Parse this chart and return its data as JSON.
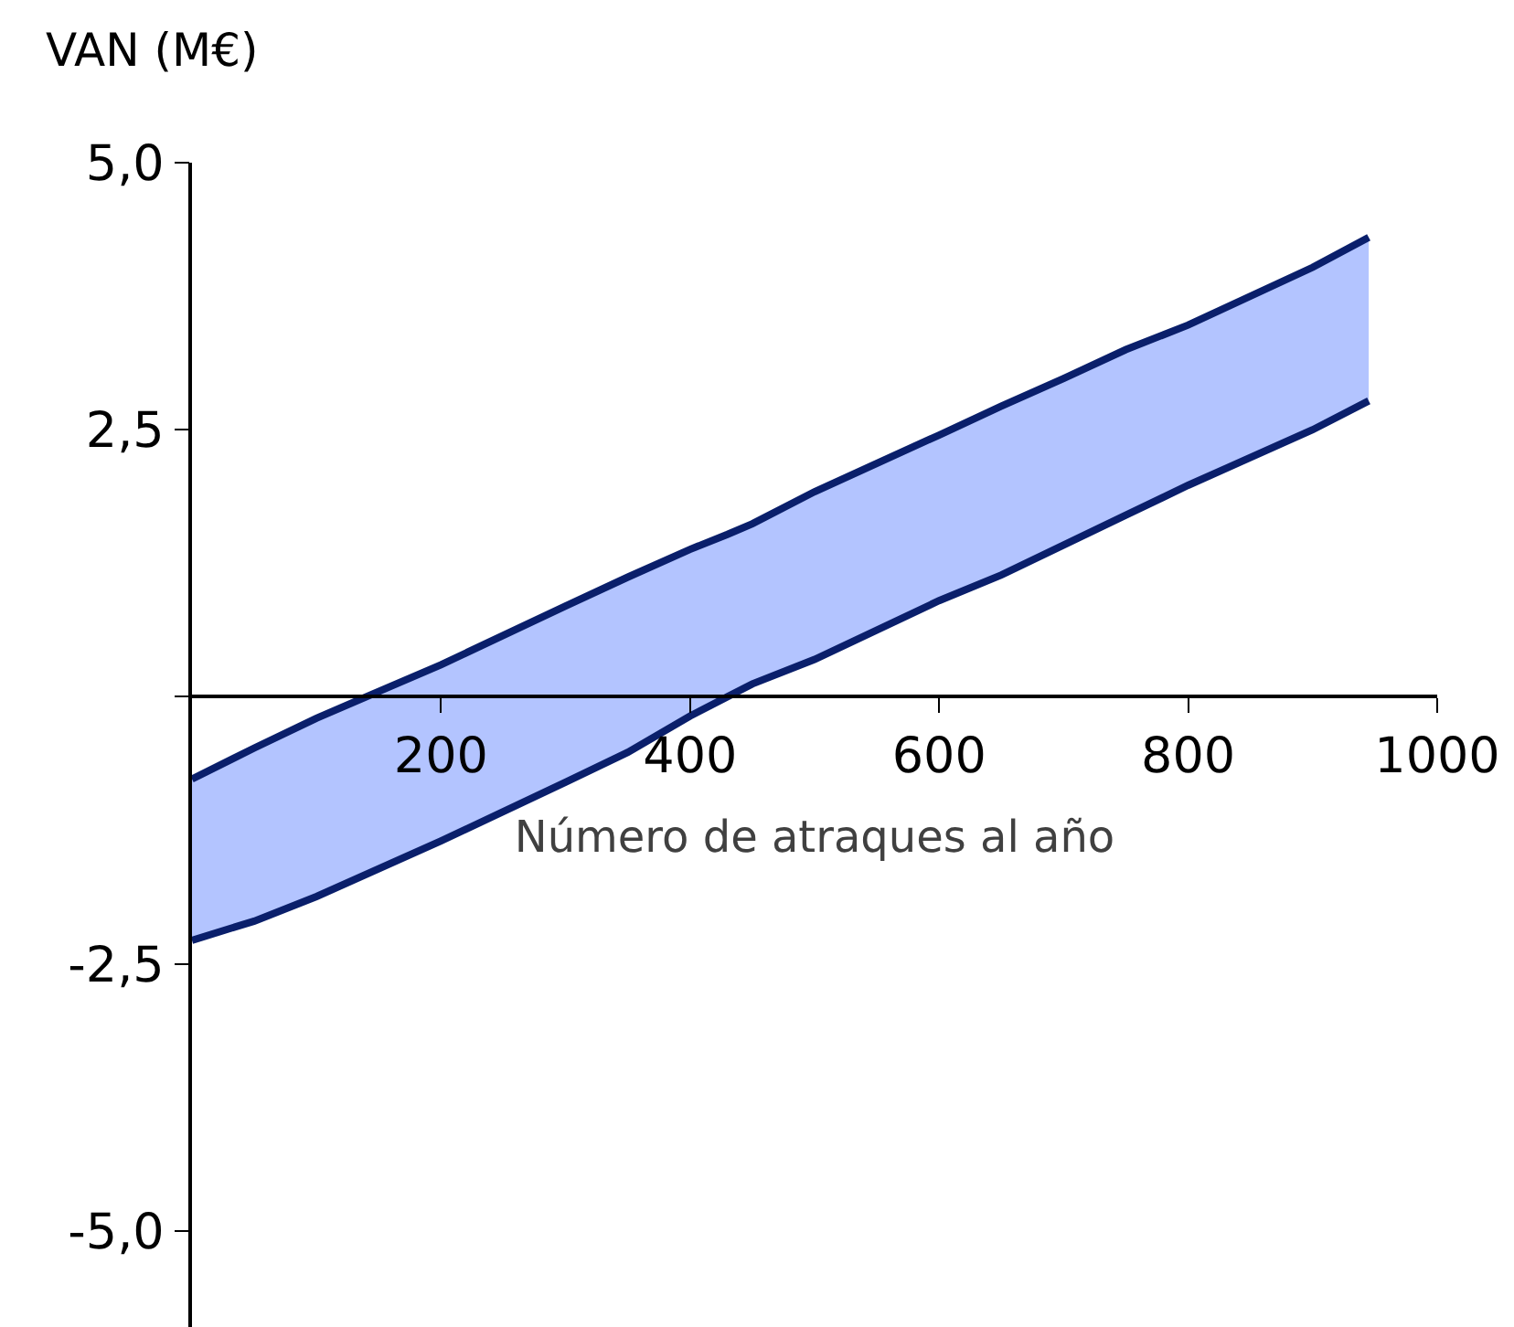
{
  "chart_data": {
    "type": "line",
    "ylabel": "VAN (M€)",
    "xlabel": "Número de atraques al año",
    "x": [
      0,
      50,
      100,
      200,
      300,
      350,
      400,
      430,
      450,
      500,
      600,
      650,
      700,
      750,
      800,
      900,
      945
    ],
    "series": [
      {
        "color": "#0a1f6b",
        "values": [
          -0.77,
          -0.48,
          -0.2,
          0.3,
          0.85,
          1.12,
          1.38,
          1.52,
          1.62,
          1.92,
          2.45,
          2.72,
          2.98,
          3.25,
          3.48,
          4.02,
          4.3
        ],
        "lower": [
          -2.28,
          -2.1,
          -1.87,
          -1.35,
          -0.8,
          -0.52,
          -0.18,
          0,
          0.12,
          0.35,
          0.9,
          1.14,
          1.42,
          1.7,
          1.98,
          2.5,
          2.77
        ],
        "upper": [
          -0.77,
          -0.48,
          -0.2,
          0.3,
          0.85,
          1.12,
          1.38,
          1.52,
          1.62,
          1.92,
          2.45,
          2.72,
          2.98,
          3.25,
          3.48,
          4.02,
          4.3
        ]
      },
      {
        "color": "#0a1f6b",
        "values": [
          -2.28,
          -2.1,
          -1.87,
          -1.35,
          -0.8,
          -0.52,
          -0.18,
          0,
          0.12,
          0.35,
          0.9,
          1.14,
          1.42,
          1.7,
          1.98,
          2.5,
          2.77
        ]
      }
    ],
    "xlim": [
      0,
      1000
    ],
    "xticks": [
      200,
      400,
      600,
      800,
      1000
    ],
    "ylim": [
      -5.9,
      5
    ],
    "yticks": [
      {
        "value": 5,
        "label": "5,0"
      },
      {
        "value": 2.5,
        "label": "2,5"
      },
      {
        "value": 0,
        "label": null
      },
      {
        "value": -2.5,
        "label": "-2,5"
      },
      {
        "value": -5,
        "label": "-5,0"
      }
    ],
    "grid": false,
    "legend": false,
    "marker": "none",
    "line_style": "solid"
  }
}
